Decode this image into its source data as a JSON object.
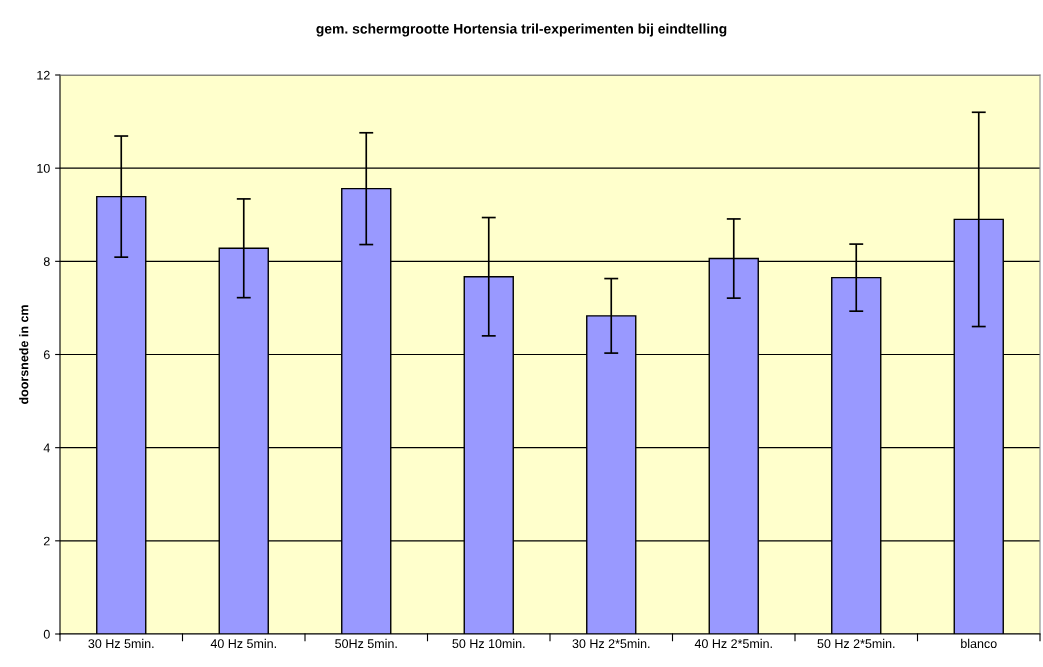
{
  "chart_data": {
    "type": "bar",
    "title": "gem. schermgrootte Hortensia tril-experimenten bij eindtelling",
    "ylabel": "doorsnede in cm",
    "categories": [
      "30 Hz 5min.",
      "40 Hz 5min.",
      "50Hz 5min.",
      "50 Hz 10min.",
      "30 Hz 2*5min.",
      "40 Hz 2*5min.",
      "50 Hz 2*5min.",
      "blanco"
    ],
    "values": [
      9.39,
      8.28,
      9.56,
      7.67,
      6.83,
      8.06,
      7.65,
      8.9
    ],
    "errors": [
      1.3,
      1.06,
      1.2,
      1.27,
      0.8,
      0.85,
      0.72,
      2.3
    ],
    "color": "#9999ff",
    "ylim": [
      0,
      12
    ],
    "yticks": [
      0,
      2,
      4,
      6,
      8,
      10,
      12
    ],
    "grid": "y"
  }
}
